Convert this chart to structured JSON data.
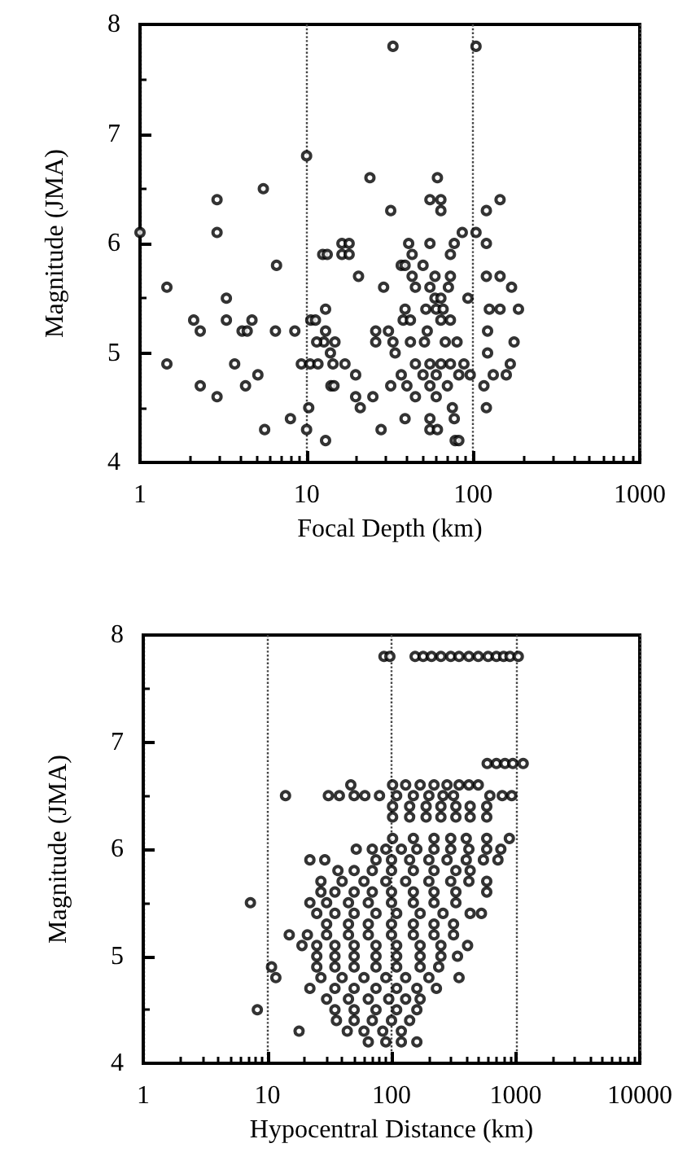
{
  "chart_data": [
    {
      "type": "scatter",
      "xlabel": "Focal Depth (km)",
      "ylabel": "Magnitude (JMA)",
      "log": "x",
      "grid": "x",
      "marker": "circle",
      "xlim": [
        1,
        1000
      ],
      "xticks": [
        1,
        10,
        100,
        1000
      ],
      "ylim": [
        4,
        8
      ],
      "yticks": [
        4,
        5,
        6,
        7,
        8
      ],
      "series": [
        {
          "color": "#000000",
          "x": [
            1,
            1.45,
            1.45,
            2.1,
            2.3,
            2.3,
            2.9,
            2.9,
            2.9,
            3.3,
            3.3,
            3.7,
            4.1,
            4.3,
            4.4,
            4.7,
            5.1,
            5.5,
            5.6,
            6.6,
            6.5,
            8,
            8.5,
            10,
            9.3,
            10,
            10.3,
            10.5,
            10.6,
            11.3,
            12.5,
            11.7,
            13,
            13,
            12.7,
            13.9,
            14,
            13,
            14.4,
            16.3,
            16.3,
            11.5,
            14.8,
            33,
            104,
            24,
            61,
            55,
            64,
            64,
            32,
            120,
            145,
            86,
            104,
            120,
            18,
            18,
            13.3,
            41,
            55,
            77,
            73,
            43,
            37,
            39,
            50,
            20.5,
            29,
            43,
            45,
            55,
            59,
            71,
            73,
            59,
            64,
            93,
            120,
            145,
            170,
            125,
            145,
            187,
            52,
            60,
            66,
            39,
            38,
            42,
            64,
            73,
            26,
            31,
            53,
            26,
            33,
            42,
            51,
            68,
            80,
            176,
            122,
            122,
            34,
            45,
            55,
            64,
            73,
            88,
            167,
            17,
            19.7,
            132,
            158,
            14.6,
            37,
            50,
            60,
            82,
            40,
            55,
            70,
            32,
            19.7,
            21,
            25,
            45,
            60,
            75,
            39,
            55,
            77,
            28,
            55,
            61,
            78,
            82,
            116,
            120,
            96
          ],
          "values": [
            6.1,
            5.6,
            4.9,
            5.3,
            5.2,
            4.7,
            6.4,
            6.1,
            4.6,
            5.5,
            5.3,
            4.9,
            5.2,
            4.7,
            5.2,
            5.3,
            4.8,
            6.5,
            4.3,
            5.8,
            5.2,
            4.4,
            5.2,
            6.8,
            4.9,
            4.3,
            4.5,
            4.9,
            5.3,
            5.3,
            5.9,
            4.9,
            5.4,
            5.2,
            5.1,
            5,
            4.7,
            4.2,
            4.9,
            6,
            5.9,
            5.1,
            5.1,
            7.8,
            7.8,
            6.6,
            6.6,
            6.4,
            6.4,
            6.3,
            6.3,
            6.3,
            6.4,
            6.1,
            6.1,
            6,
            6,
            5.9,
            5.9,
            6,
            6,
            6,
            5.9,
            5.9,
            5.8,
            5.8,
            5.8,
            5.7,
            5.6,
            5.7,
            5.6,
            5.6,
            5.7,
            5.6,
            5.7,
            5.5,
            5.5,
            5.5,
            5.7,
            5.7,
            5.6,
            5.4,
            5.4,
            5.4,
            5.4,
            5.4,
            5.4,
            5.4,
            5.3,
            5.3,
            5.3,
            5.3,
            5.2,
            5.2,
            5.2,
            5.1,
            5.1,
            5.1,
            5.1,
            5.1,
            5.1,
            5.1,
            5.2,
            5,
            5,
            4.9,
            4.9,
            4.9,
            4.9,
            4.9,
            4.9,
            4.9,
            4.8,
            4.8,
            4.8,
            4.7,
            4.8,
            4.8,
            4.8,
            4.8,
            4.7,
            4.7,
            4.7,
            4.7,
            4.6,
            4.5,
            4.6,
            4.6,
            4.6,
            4.5,
            4.4,
            4.4,
            4.4,
            4.3,
            4.3,
            4.3,
            4.2,
            4.2,
            4.7,
            4.5,
            4.8
          ]
        }
      ]
    },
    {
      "type": "scatter",
      "xlabel": "Hypocentral Distance (km)",
      "ylabel": "Magnitude (JMA)",
      "log": "x",
      "grid": "x",
      "marker": "circle",
      "xlim": [
        1,
        10000
      ],
      "xticks": [
        1,
        10,
        100,
        1000,
        10000
      ],
      "ylim": [
        4,
        8
      ],
      "yticks": [
        4,
        5,
        6,
        7,
        8
      ],
      "series": [
        {
          "color": "#000000",
          "x": [
            87,
            97,
            155,
            180,
            210,
            250,
            300,
            350,
            420,
            500,
            600,
            700,
            800,
            900,
            1050,
            590,
            700,
            820,
            950,
            1150,
            47,
            102,
            130,
            170,
            220,
            280,
            350,
            420,
            500,
            14,
            31,
            38,
            50,
            61,
            80,
            110,
            150,
            200,
            260,
            316,
            620,
            780,
            930,
            102,
            140,
            190,
            250,
            330,
            430,
            585,
            102,
            140,
            190,
            250,
            330,
            430,
            585,
            102,
            150,
            220,
            300,
            400,
            585,
            890,
            52,
            70,
            90,
            120,
            160,
            220,
            300,
            420,
            585,
            760,
            22,
            29,
            75,
            100,
            140,
            200,
            280,
            400,
            550,
            720,
            37,
            50,
            70,
            100,
            150,
            220,
            330,
            430,
            27,
            40,
            60,
            90,
            130,
            200,
            300,
            420,
            585,
            27,
            35,
            50,
            70,
            100,
            150,
            220,
            330,
            585,
            7.3,
            22,
            30,
            45,
            65,
            100,
            150,
            220,
            330,
            25,
            35,
            50,
            75,
            110,
            170,
            260,
            430,
            530,
            30,
            45,
            65,
            100,
            150,
            220,
            316,
            15,
            21,
            30,
            45,
            65,
            100,
            150,
            220,
            316,
            19,
            25,
            35,
            50,
            75,
            110,
            170,
            250,
            410,
            25,
            35,
            50,
            75,
            110,
            170,
            250,
            340,
            10.8,
            25,
            35,
            50,
            75,
            110,
            170,
            240,
            11.7,
            27,
            40,
            60,
            90,
            130,
            200,
            350,
            22,
            35,
            50,
            75,
            110,
            160,
            230,
            30,
            45,
            65,
            95,
            130,
            170,
            8.3,
            35,
            50,
            75,
            110,
            160,
            36,
            50,
            70,
            100,
            140,
            18,
            44,
            60,
            85,
            120,
            65,
            90,
            120,
            160
          ],
          "values": [
            7.8,
            7.8,
            7.8,
            7.8,
            7.8,
            7.8,
            7.8,
            7.8,
            7.8,
            7.8,
            7.8,
            7.8,
            7.8,
            7.8,
            7.8,
            6.8,
            6.8,
            6.8,
            6.8,
            6.8,
            6.6,
            6.6,
            6.6,
            6.6,
            6.6,
            6.6,
            6.6,
            6.6,
            6.6,
            6.5,
            6.5,
            6.5,
            6.5,
            6.5,
            6.5,
            6.5,
            6.5,
            6.5,
            6.5,
            6.5,
            6.5,
            6.5,
            6.5,
            6.4,
            6.4,
            6.4,
            6.4,
            6.4,
            6.4,
            6.4,
            6.3,
            6.3,
            6.3,
            6.3,
            6.3,
            6.3,
            6.3,
            6.1,
            6.1,
            6.1,
            6.1,
            6.1,
            6.1,
            6.1,
            6,
            6,
            6,
            6,
            6,
            6,
            6,
            6,
            6,
            6,
            5.9,
            5.9,
            5.9,
            5.9,
            5.9,
            5.9,
            5.9,
            5.9,
            5.9,
            5.9,
            5.8,
            5.8,
            5.8,
            5.8,
            5.8,
            5.8,
            5.8,
            5.8,
            5.7,
            5.7,
            5.7,
            5.7,
            5.7,
            5.7,
            5.7,
            5.7,
            5.7,
            5.6,
            5.6,
            5.6,
            5.6,
            5.6,
            5.6,
            5.6,
            5.6,
            5.6,
            5.5,
            5.5,
            5.5,
            5.5,
            5.5,
            5.5,
            5.5,
            5.5,
            5.5,
            5.4,
            5.4,
            5.4,
            5.4,
            5.4,
            5.4,
            5.4,
            5.4,
            5.4,
            5.3,
            5.3,
            5.3,
            5.3,
            5.3,
            5.3,
            5.3,
            5.2,
            5.2,
            5.2,
            5.2,
            5.2,
            5.2,
            5.2,
            5.2,
            5.2,
            5.1,
            5.1,
            5.1,
            5.1,
            5.1,
            5.1,
            5.1,
            5.1,
            5.1,
            5,
            5,
            5,
            5,
            5,
            5,
            5,
            5,
            4.9,
            4.9,
            4.9,
            4.9,
            4.9,
            4.9,
            4.9,
            4.9,
            4.8,
            4.8,
            4.8,
            4.8,
            4.8,
            4.8,
            4.8,
            4.8,
            4.7,
            4.7,
            4.7,
            4.7,
            4.7,
            4.7,
            4.7,
            4.6,
            4.6,
            4.6,
            4.6,
            4.6,
            4.6,
            4.5,
            4.5,
            4.5,
            4.5,
            4.5,
            4.5,
            4.4,
            4.4,
            4.4,
            4.4,
            4.4,
            4.3,
            4.3,
            4.3,
            4.3,
            4.3,
            4.2,
            4.2,
            4.2,
            4.2
          ]
        }
      ]
    }
  ]
}
